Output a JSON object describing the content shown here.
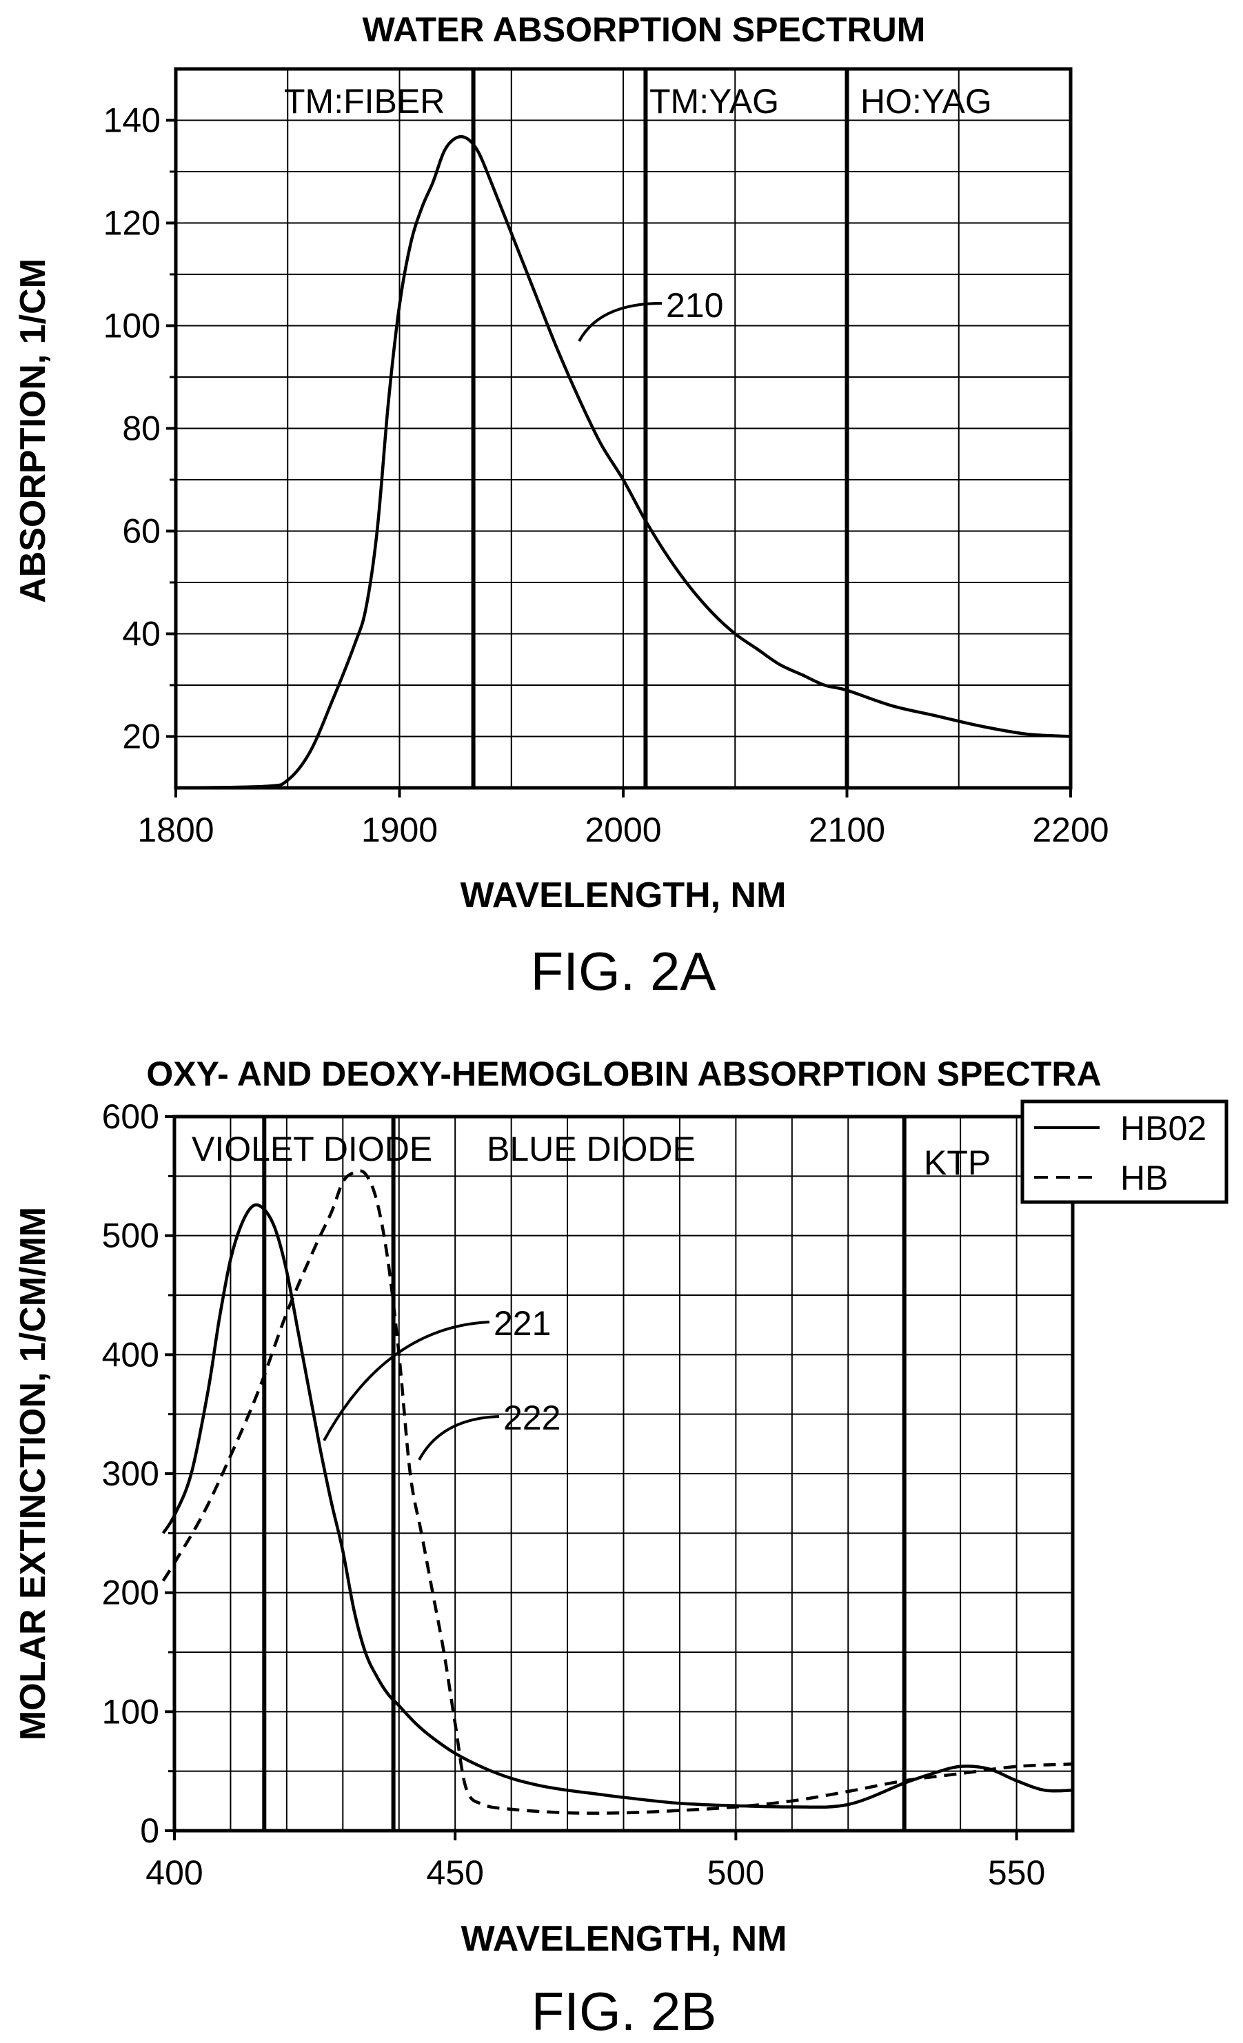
{
  "chart_data": [
    {
      "type": "line",
      "title": "WATER ABSORPTION SPECTRUM",
      "xlabel": "WAVELENGTH, NM",
      "ylabel": "ABSORPTION, 1/CM",
      "figure_label": "FIG. 2A",
      "xlim": [
        1800,
        2200
      ],
      "ylim": [
        10,
        150
      ],
      "x_ticks": [
        1800,
        1900,
        2000,
        2100,
        2200
      ],
      "y_ticks": [
        20,
        40,
        60,
        80,
        100,
        120,
        140
      ],
      "grid": true,
      "laser_lines": [
        {
          "label": "TM:FIBER",
          "x": 1933
        },
        {
          "label": "TM:YAG",
          "x": 2010
        },
        {
          "label": "HO:YAG",
          "x": 2100
        }
      ],
      "series": [
        {
          "callout": "210",
          "style": "solid",
          "x": [
            1800,
            1840,
            1850,
            1860,
            1870,
            1880,
            1885,
            1890,
            1895,
            1900,
            1905,
            1910,
            1915,
            1920,
            1925,
            1930,
            1935,
            1940,
            1950,
            1960,
            1970,
            1980,
            1990,
            2000,
            2010,
            2020,
            2030,
            2040,
            2050,
            2060,
            2070,
            2080,
            2090,
            2100,
            2120,
            2140,
            2160,
            2180,
            2200
          ],
          "y": [
            10,
            10.3,
            11.5,
            17,
            27,
            38,
            45,
            60,
            85,
            104,
            116,
            123,
            128,
            134,
            136.5,
            136.5,
            134,
            129,
            118,
            107,
            96,
            86,
            77,
            70,
            62,
            55,
            49,
            44,
            40,
            37,
            34,
            32,
            30,
            29,
            26,
            24,
            22,
            20.5,
            20
          ]
        }
      ]
    },
    {
      "type": "line",
      "title": "OXY- AND DEOXY-HEMOGLOBIN ABSORPTION SPECTRA",
      "xlabel": "WAVELENGTH, NM",
      "ylabel": "MOLAR EXTINCTION, 1/CM/MM",
      "figure_label": "FIG. 2B",
      "xlim": [
        400,
        560
      ],
      "ylim": [
        0,
        600
      ],
      "x_ticks": [
        400,
        450,
        500,
        550
      ],
      "y_ticks": [
        0,
        100,
        200,
        300,
        400,
        500,
        600
      ],
      "grid": true,
      "legend_position": "top-right",
      "laser_lines": [
        {
          "label": "VIOLET DIODE",
          "x": 416
        },
        {
          "label": "BLUE DIODE",
          "x": 439
        },
        {
          "label": "KTP",
          "x": 530
        }
      ],
      "series": [
        {
          "name": "HB02",
          "callout": "221",
          "style": "solid",
          "x": [
            398,
            400,
            403,
            406,
            408,
            410,
            412,
            414,
            416,
            418,
            420,
            422,
            424,
            426,
            428,
            430,
            432,
            434,
            436,
            438,
            440,
            443,
            446,
            450,
            455,
            460,
            465,
            470,
            475,
            480,
            490,
            500,
            510,
            520,
            530,
            535,
            540,
            545,
            550,
            555,
            560
          ],
          "y": [
            250,
            265,
            300,
            370,
            430,
            480,
            510,
            525,
            522,
            505,
            470,
            420,
            370,
            320,
            275,
            235,
            185,
            150,
            130,
            115,
            105,
            90,
            78,
            65,
            53,
            44,
            38,
            34,
            31,
            28,
            23,
            21,
            20,
            22,
            40,
            48,
            54,
            52,
            42,
            34,
            34
          ]
        },
        {
          "name": "HB",
          "callout": "222",
          "style": "dashed",
          "x": [
            398,
            400,
            405,
            410,
            415,
            420,
            425,
            428,
            430,
            432,
            434,
            436,
            438,
            440,
            442,
            444,
            446,
            448,
            450,
            452,
            455,
            460,
            470,
            480,
            490,
            500,
            510,
            520,
            530,
            540,
            550,
            560
          ],
          "y": [
            210,
            225,
            265,
            315,
            370,
            435,
            490,
            520,
            545,
            553,
            552,
            530,
            480,
            400,
            300,
            250,
            200,
            150,
            90,
            35,
            22,
            18,
            15,
            15,
            17,
            20,
            25,
            33,
            42,
            48,
            54,
            56
          ]
        }
      ]
    }
  ]
}
